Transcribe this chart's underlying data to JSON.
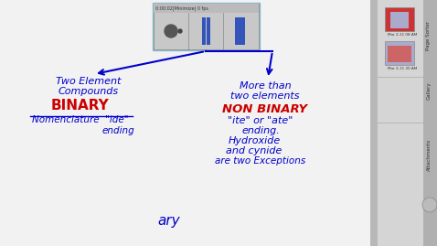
{
  "bg_color": "#e0e0e0",
  "whiteboard_color": "#f2f2f2",
  "sidebar_color": "#d8d8d8",
  "sidebar_right_color": "#c0c0c0",
  "blue": "#0000cc",
  "red": "#cc0000",
  "player_bg": "#c8c8c8",
  "player_ctrl_bg": "#b0b0b0",
  "player_btn_blue": "#3355bb",
  "player_circle": "#555555",
  "player_top_bg": "#bbbbbb",
  "player_text": "0:00:02|Minimize| 0 fps",
  "left_line1": "Two Element",
  "left_line2": "Compounds",
  "left_red": "BINARY",
  "nom_text": "Nomenclature",
  "ide_text": "\"ide\"",
  "ending_text": "ending",
  "right_line1": "More than",
  "right_line2": "two elements",
  "right_red": "NON BINARY",
  "ite_text": "\"ite\" or \"ate\"",
  "ending2_text": "ending.",
  "hydroxide_text": "Hydroxide",
  "cynide_text": "and cynide",
  "exceptions_text": "are two Exceptions",
  "bottom_text": "ary",
  "thumb1_label": "Mar 2-11 08 AM",
  "thumb2_label": "Mar 2-11 30 AM",
  "sidebar_label1": "Page Sorter",
  "sidebar_label2": "Gallery",
  "sidebar_label3": "Attachments"
}
